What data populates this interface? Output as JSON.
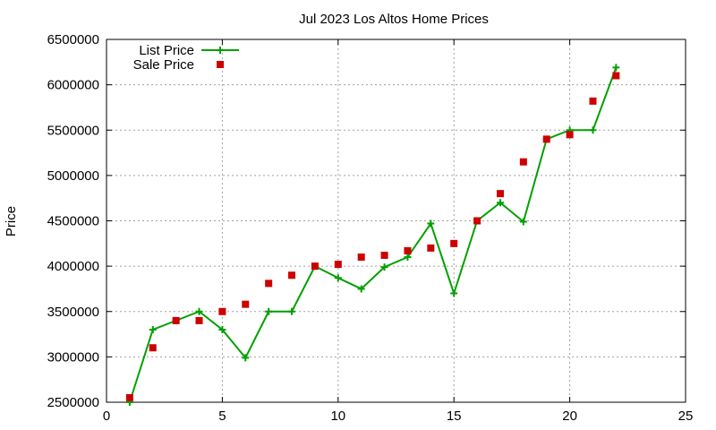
{
  "chart_data": {
    "type": "line",
    "title": "Jul 2023 Los Altos Home Prices",
    "xlabel": "",
    "ylabel": "Price",
    "xlim": [
      0,
      25
    ],
    "ylim": [
      2500000,
      6500000
    ],
    "xticks": [
      0,
      5,
      10,
      15,
      20,
      25
    ],
    "yticks": [
      2500000,
      3000000,
      3500000,
      4000000,
      4500000,
      5000000,
      5500000,
      6000000,
      6500000
    ],
    "grid": true,
    "legend_position": "top-left",
    "x": [
      1,
      2,
      3,
      4,
      5,
      6,
      7,
      8,
      9,
      10,
      11,
      12,
      13,
      14,
      15,
      16,
      17,
      18,
      19,
      20,
      21,
      22
    ],
    "series": [
      {
        "name": "List Price",
        "style": "linespoints",
        "color": "#00a000",
        "values": [
          2500000,
          3300000,
          3400000,
          3500000,
          3300000,
          2990000,
          3500000,
          3500000,
          4000000,
          3870000,
          3750000,
          3990000,
          4100000,
          4470000,
          3700000,
          4500000,
          4700000,
          4490000,
          5400000,
          5500000,
          5500000,
          6190000
        ]
      },
      {
        "name": "Sale Price",
        "style": "points",
        "color": "#cc0000",
        "values": [
          2550000,
          3100000,
          3400000,
          3400000,
          3500000,
          3580000,
          3810000,
          3900000,
          4000000,
          4020000,
          4100000,
          4120000,
          4170000,
          4200000,
          4250000,
          4500000,
          4800000,
          5150000,
          5400000,
          5450000,
          5820000,
          6100000
        ]
      }
    ]
  }
}
